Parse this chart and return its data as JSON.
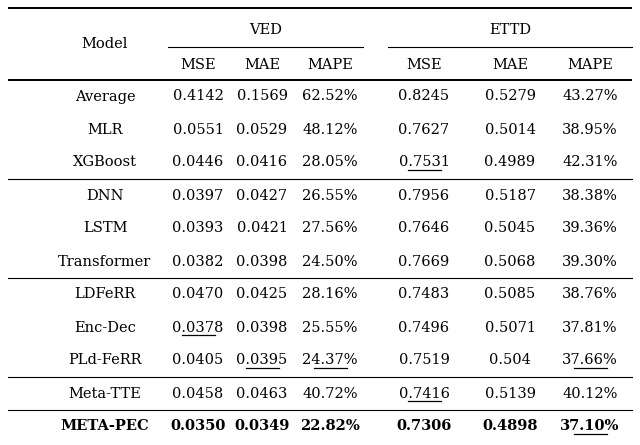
{
  "rows": [
    {
      "model": "Average",
      "vals": [
        "0.4142",
        "0.1569",
        "62.52%",
        "0.8245",
        "0.5279",
        "43.27%"
      ],
      "group": 1,
      "bold": false
    },
    {
      "model": "MLR",
      "vals": [
        "0.0551",
        "0.0529",
        "48.12%",
        "0.7627",
        "0.5014",
        "38.95%"
      ],
      "group": 1,
      "bold": false
    },
    {
      "model": "XGBoost",
      "vals": [
        "0.0446",
        "0.0416",
        "28.05%",
        "0.7531",
        "0.4989",
        "42.31%"
      ],
      "group": 1,
      "bold": false
    },
    {
      "model": "DNN",
      "vals": [
        "0.0397",
        "0.0427",
        "26.55%",
        "0.7956",
        "0.5187",
        "38.38%"
      ],
      "group": 2,
      "bold": false
    },
    {
      "model": "LSTM",
      "vals": [
        "0.0393",
        "0.0421",
        "27.56%",
        "0.7646",
        "0.5045",
        "39.36%"
      ],
      "group": 2,
      "bold": false
    },
    {
      "model": "Transformer",
      "vals": [
        "0.0382",
        "0.0398",
        "24.50%",
        "0.7669",
        "0.5068",
        "39.30%"
      ],
      "group": 2,
      "bold": false
    },
    {
      "model": "LDFeRR",
      "vals": [
        "0.0470",
        "0.0425",
        "28.16%",
        "0.7483",
        "0.5085",
        "38.76%"
      ],
      "group": 3,
      "bold": false
    },
    {
      "model": "Enc-Dec",
      "vals": [
        "0.0378",
        "0.0398",
        "25.55%",
        "0.7496",
        "0.5071",
        "37.81%"
      ],
      "group": 3,
      "bold": false
    },
    {
      "model": "PLd-FeRR",
      "vals": [
        "0.0405",
        "0.0395",
        "24.37%",
        "0.7519",
        "0.504",
        "37.66%"
      ],
      "group": 3,
      "bold": false
    },
    {
      "model": "Meta-TTE",
      "vals": [
        "0.0458",
        "0.0463",
        "40.72%",
        "0.7416",
        "0.5139",
        "40.12%"
      ],
      "group": 4,
      "bold": false
    },
    {
      "model": "Meta-Pec",
      "vals": [
        "0.0350",
        "0.0349",
        "22.82%",
        "0.7306",
        "0.4898",
        "37.10%"
      ],
      "group": 5,
      "bold": true
    }
  ],
  "underlined_cells": [
    [
      2,
      4
    ],
    [
      7,
      1
    ],
    [
      8,
      2
    ],
    [
      8,
      3
    ],
    [
      8,
      6
    ],
    [
      9,
      4
    ],
    [
      10,
      6
    ]
  ],
  "group_separators_after": [
    2,
    5,
    8,
    9
  ],
  "ved_subcols": [
    "MSE",
    "MAE",
    "MAPE"
  ],
  "ettd_subcols": [
    "MSE",
    "MAE",
    "MAPE"
  ],
  "background_color": "#ffffff",
  "font_size": 10.5
}
